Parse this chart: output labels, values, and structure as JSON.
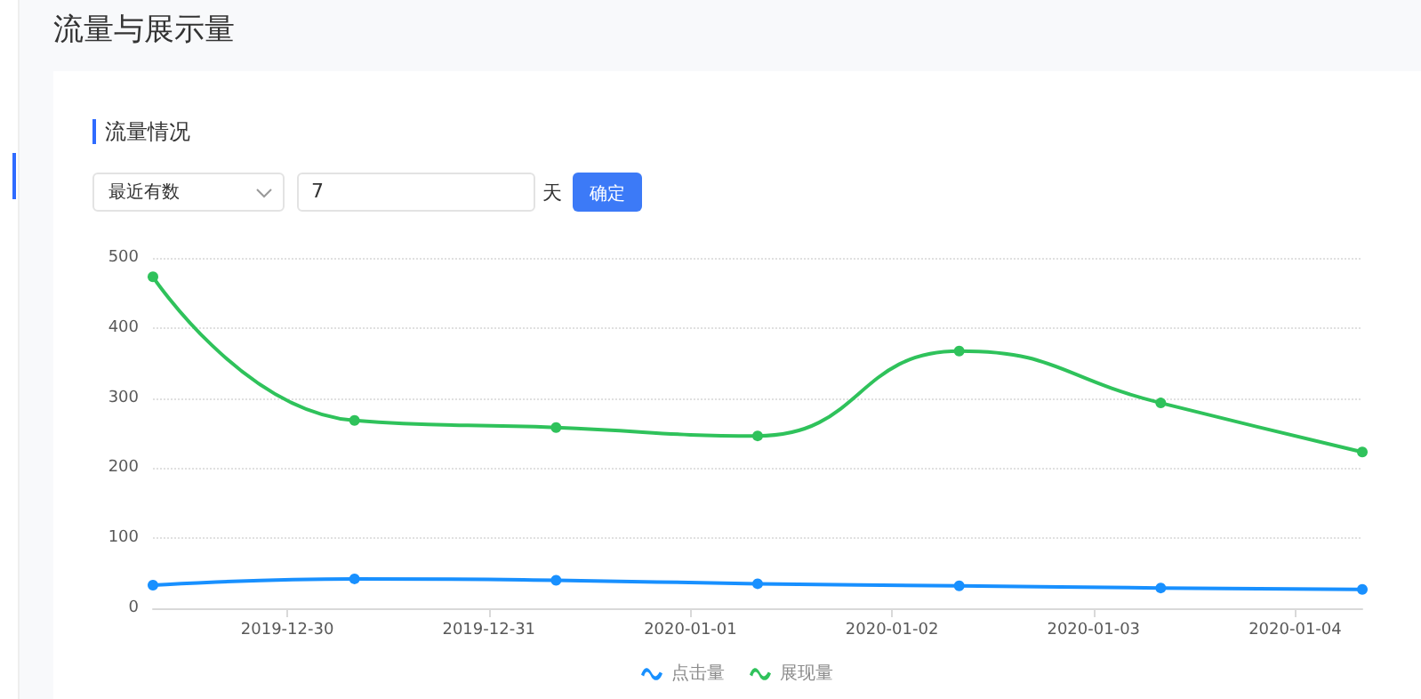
{
  "chart_data": {
    "type": "line",
    "title": "流量与展示量",
    "subtitle": "流量情况",
    "annotations": [
      "最近有数",
      "7",
      "天",
      "确定"
    ],
    "x": [
      "2019-12-29T08:00",
      "2019-12-30T08:00",
      "2019-12-31T08:00",
      "2020-01-01T08:00",
      "2020-01-02T08:00",
      "2020-01-03T08:00",
      "2020-01-04T08:00"
    ],
    "series": [
      {
        "name": "点击量",
        "color": "#1890ff",
        "values": [
          33,
          42,
          40,
          35,
          32,
          29,
          27
        ]
      },
      {
        "name": "展现量",
        "color": "#2fc25b",
        "values": [
          473,
          268,
          258,
          246,
          367,
          293,
          223
        ]
      }
    ],
    "xlim": [
      "2019-12-29T08:00",
      "2020-01-04T08:00"
    ],
    "xticks": [
      "2019-12-30",
      "2019-12-31",
      "2020-01-01",
      "2020-01-02",
      "2020-01-03",
      "2020-01-04"
    ],
    "ylim": [
      0,
      500
    ],
    "yticks": [
      0,
      100,
      200,
      300,
      400,
      500
    ],
    "grid": "y",
    "legend": "bottom",
    "marker": "circle",
    "line_style": "solid"
  }
}
